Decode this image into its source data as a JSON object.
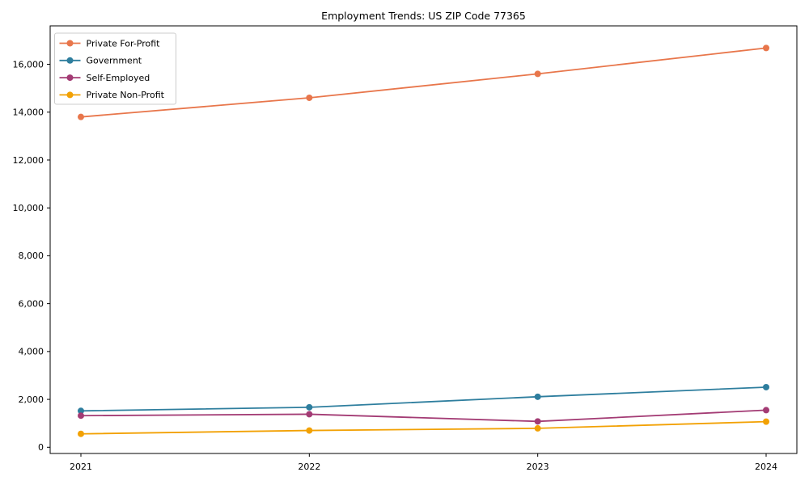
{
  "chart_data": {
    "type": "line",
    "title": "Employment Trends: US ZIP Code 77365",
    "xlabel": "",
    "ylabel": "",
    "categories": [
      "2021",
      "2022",
      "2023",
      "2024"
    ],
    "series": [
      {
        "name": "Private For-Profit",
        "color": "#e8764b",
        "values": [
          13800,
          14600,
          15600,
          16680
        ]
      },
      {
        "name": "Government",
        "color": "#2e7e9e",
        "values": [
          1520,
          1670,
          2110,
          2510
        ]
      },
      {
        "name": "Self-Employed",
        "color": "#a33b74",
        "values": [
          1320,
          1380,
          1080,
          1550
        ]
      },
      {
        "name": "Private Non-Profit",
        "color": "#f2a104",
        "values": [
          560,
          700,
          790,
          1070
        ]
      }
    ],
    "yticks": [
      0,
      2000,
      4000,
      6000,
      8000,
      10000,
      12000,
      14000,
      16000
    ],
    "ytick_format": "comma",
    "ylim": [
      0,
      16000
    ],
    "grid": false,
    "legend_position": "upper left",
    "axis_color": "#000000",
    "legend_border_color": "#cccccc",
    "marker": "circle",
    "marker_radius": 4,
    "line_width": 1.8
  }
}
